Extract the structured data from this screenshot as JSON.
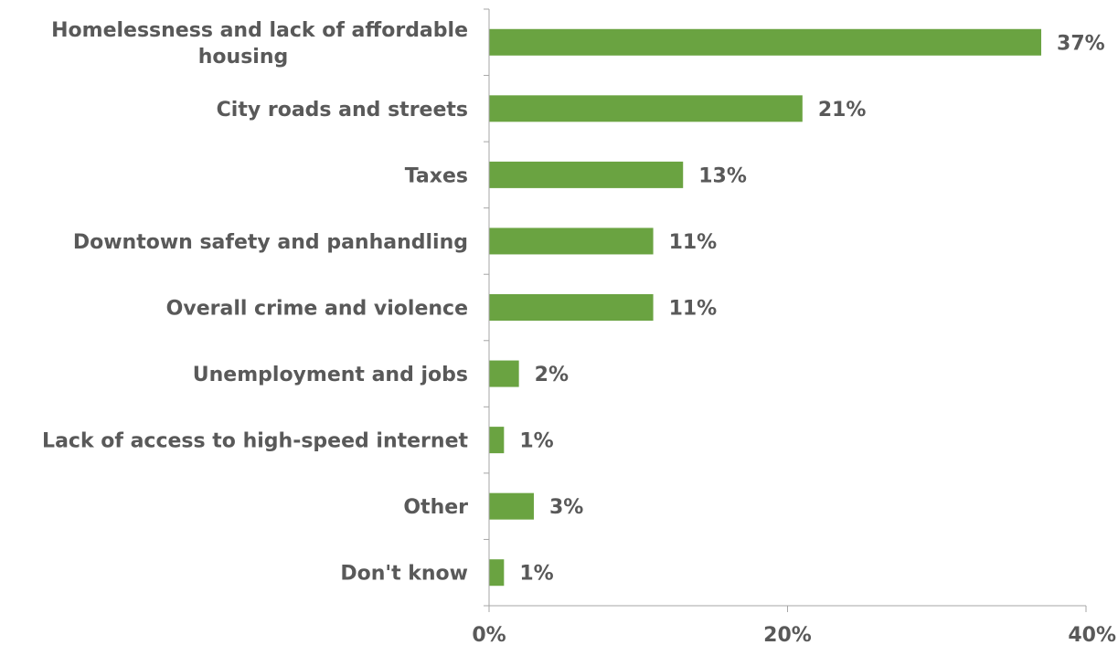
{
  "chart_data": {
    "type": "bar",
    "orientation": "horizontal",
    "title": "",
    "xlabel": "",
    "ylabel": "",
    "categories": [
      [
        "Homelessness and lack of affordable",
        "housing"
      ],
      [
        "City roads and streets"
      ],
      [
        "Taxes"
      ],
      [
        "Downtown safety and panhandling"
      ],
      [
        "Overall crime and violence"
      ],
      [
        "Unemployment and jobs"
      ],
      [
        "Lack of access to high-speed internet"
      ],
      [
        "Other"
      ],
      [
        "Don't know"
      ]
    ],
    "values": [
      37,
      21,
      13,
      11,
      11,
      2,
      1,
      3,
      1
    ],
    "value_labels": [
      "37%",
      "21%",
      "13%",
      "11%",
      "11%",
      "2%",
      "1%",
      "3%",
      "1%"
    ],
    "xlim": [
      0,
      40
    ],
    "x_ticks": [
      0,
      20,
      40
    ],
    "x_tick_labels": [
      "0%",
      "20%",
      "40%"
    ],
    "grid": false,
    "bar_color": "#6aa341",
    "text_color": "#595959",
    "axis_color": "#a6a6a6"
  }
}
